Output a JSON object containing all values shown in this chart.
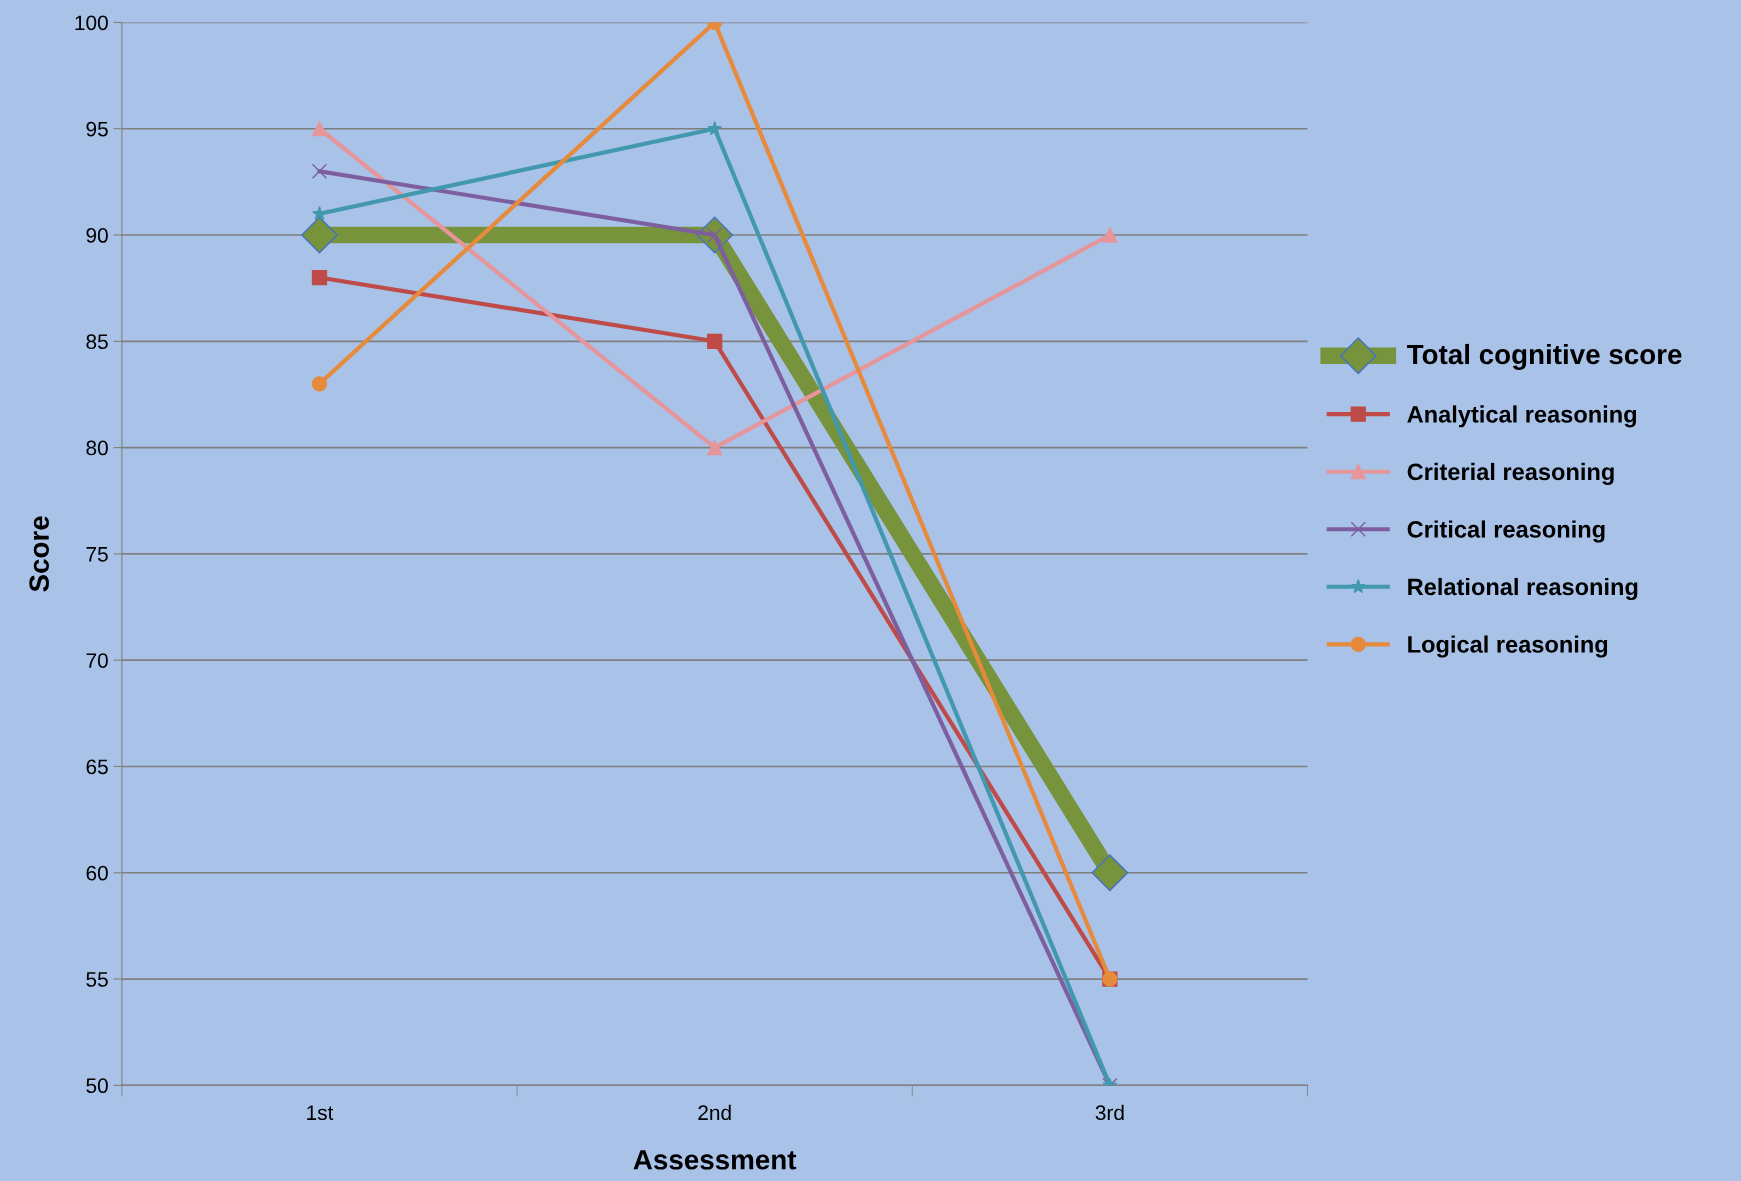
{
  "chart_data": {
    "type": "line",
    "xlabel": "Assessment",
    "ylabel": "Score",
    "categories": [
      "1st",
      "2nd",
      "3rd"
    ],
    "series": [
      {
        "name": "Total cognitive score",
        "color": "#77933c",
        "marker": "diamond",
        "values": [
          90,
          90,
          60
        ]
      },
      {
        "name": "Analytical reasoning",
        "color": "#be4b48",
        "marker": "square",
        "values": [
          88,
          85,
          55
        ]
      },
      {
        "name": "Criterial reasoning",
        "color": "#e6969b",
        "marker": "triangle",
        "values": [
          95,
          80,
          90
        ]
      },
      {
        "name": "Critical reasoning",
        "color": "#7d5fa0",
        "marker": "cross",
        "values": [
          93,
          90,
          50
        ]
      },
      {
        "name": "Relational reasoning",
        "color": "#4198af",
        "marker": "star",
        "values": [
          91,
          95,
          50
        ]
      },
      {
        "name": "Logical reasoning",
        "color": "#e68a3c",
        "marker": "circle",
        "values": [
          83,
          100,
          55
        ]
      }
    ],
    "ylim": [
      50,
      100
    ],
    "yticks": [
      50,
      55,
      60,
      65,
      70,
      75,
      80,
      85,
      90,
      95,
      100
    ],
    "grid": "y",
    "legend": "right",
    "line_style": "solid"
  }
}
